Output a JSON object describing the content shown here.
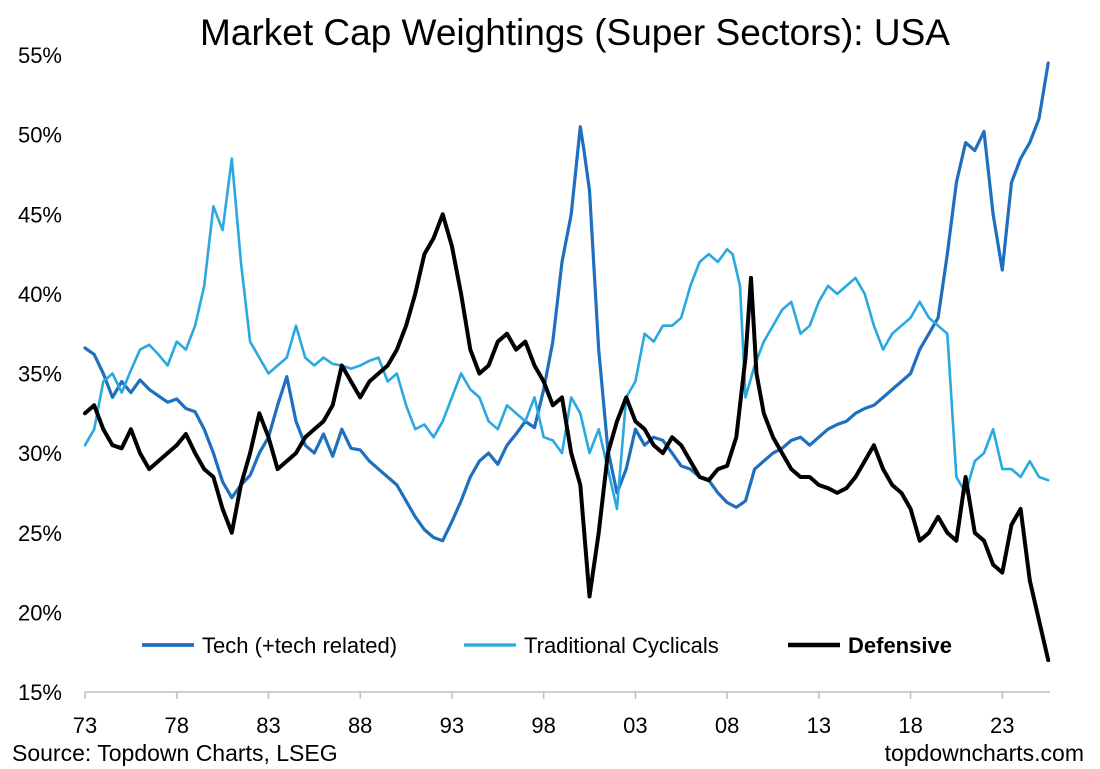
{
  "chart_data": {
    "type": "line",
    "title": "Market Cap Weightings (Super Sectors): USA",
    "xlabel": "",
    "ylabel": "",
    "x_ticks": [
      "73",
      "78",
      "83",
      "88",
      "93",
      "98",
      "03",
      "08",
      "13",
      "18",
      "23"
    ],
    "x_range": [
      1973,
      2025.6
    ],
    "y_ticks": [
      "15%",
      "20%",
      "25%",
      "30%",
      "35%",
      "40%",
      "45%",
      "50%",
      "55%"
    ],
    "y_range": [
      15,
      55
    ],
    "grid": false,
    "legend_position": "bottom",
    "series": [
      {
        "name": "Tech (+tech related)",
        "color": "#1f6fbf",
        "style": "medium",
        "x": [
          1973.0,
          1973.5,
          1974.0,
          1974.5,
          1975.0,
          1975.5,
          1976.0,
          1976.5,
          1977.0,
          1977.5,
          1978.0,
          1978.5,
          1979.0,
          1979.5,
          1980.0,
          1980.5,
          1981.0,
          1981.5,
          1982.0,
          1982.5,
          1983.0,
          1983.5,
          1984.0,
          1984.5,
          1985.0,
          1985.5,
          1986.0,
          1986.5,
          1987.0,
          1987.5,
          1988.0,
          1988.5,
          1989.0,
          1989.5,
          1990.0,
          1990.5,
          1991.0,
          1991.5,
          1992.0,
          1992.5,
          1993.0,
          1993.5,
          1994.0,
          1994.5,
          1995.0,
          1995.5,
          1996.0,
          1996.5,
          1997.0,
          1997.5,
          1998.0,
          1998.5,
          1999.0,
          1999.5,
          2000.0,
          2000.2,
          2000.5,
          2001.0,
          2001.5,
          2002.0,
          2002.5,
          2003.0,
          2003.5,
          2004.0,
          2004.5,
          2005.0,
          2005.5,
          2006.0,
          2006.5,
          2007.0,
          2007.5,
          2008.0,
          2008.5,
          2009.0,
          2009.5,
          2010.0,
          2010.5,
          2011.0,
          2011.5,
          2012.0,
          2012.5,
          2013.0,
          2013.5,
          2014.0,
          2014.5,
          2015.0,
          2015.5,
          2016.0,
          2016.5,
          2017.0,
          2017.5,
          2018.0,
          2018.5,
          2019.0,
          2019.5,
          2020.0,
          2020.5,
          2021.0,
          2021.5,
          2022.0,
          2022.5,
          2023.0,
          2023.5,
          2024.0,
          2024.5,
          2025.0,
          2025.5
        ],
        "values": [
          36.6,
          36.2,
          35.0,
          33.5,
          34.5,
          33.8,
          34.6,
          34.0,
          33.6,
          33.2,
          33.4,
          32.8,
          32.6,
          31.5,
          30.0,
          28.2,
          27.2,
          28.0,
          28.6,
          30.0,
          31.0,
          33.0,
          34.8,
          32.0,
          30.5,
          30.0,
          31.2,
          29.8,
          31.5,
          30.3,
          30.2,
          29.5,
          29.0,
          28.5,
          28.0,
          27.0,
          26.0,
          25.2,
          24.7,
          24.5,
          25.7,
          27.0,
          28.5,
          29.5,
          30.0,
          29.3,
          30.5,
          31.2,
          32.0,
          31.6,
          34.0,
          37.0,
          42.0,
          45.0,
          50.5,
          49.0,
          46.5,
          36.5,
          30.2,
          27.5,
          29.0,
          31.5,
          30.5,
          31.0,
          30.8,
          30.0,
          29.2,
          29.0,
          28.5,
          28.3,
          27.5,
          26.9,
          26.6,
          27.0,
          29.0,
          29.5,
          30.0,
          30.3,
          30.8,
          31.0,
          30.5,
          31.0,
          31.5,
          31.8,
          32.0,
          32.5,
          32.8,
          33.0,
          33.5,
          34.0,
          34.5,
          35.0,
          36.5,
          37.5,
          38.5,
          42.5,
          47.0,
          49.5,
          49.0,
          50.2,
          45.0,
          41.5,
          47.0,
          48.5,
          49.5,
          51.0,
          54.5
        ]
      },
      {
        "name": "Traditional Cyclicals",
        "color": "#2aa8e0",
        "style": "thin",
        "x": [
          1973.0,
          1973.5,
          1974.0,
          1974.5,
          1975.0,
          1975.5,
          1976.0,
          1976.5,
          1977.0,
          1977.5,
          1978.0,
          1978.5,
          1979.0,
          1979.5,
          1980.0,
          1980.5,
          1981.0,
          1981.5,
          1982.0,
          1982.5,
          1983.0,
          1983.5,
          1984.0,
          1984.5,
          1985.0,
          1985.5,
          1986.0,
          1986.5,
          1987.0,
          1987.5,
          1988.0,
          1988.5,
          1989.0,
          1989.5,
          1990.0,
          1990.5,
          1991.0,
          1991.5,
          1992.0,
          1992.5,
          1993.0,
          1993.5,
          1994.0,
          1994.5,
          1995.0,
          1995.5,
          1996.0,
          1996.5,
          1997.0,
          1997.5,
          1998.0,
          1998.5,
          1999.0,
          1999.5,
          2000.0,
          2000.5,
          2001.0,
          2001.5,
          2002.0,
          2002.5,
          2003.0,
          2003.5,
          2004.0,
          2004.5,
          2005.0,
          2005.5,
          2006.0,
          2006.5,
          2007.0,
          2007.5,
          2008.0,
          2008.3,
          2008.7,
          2009.0,
          2009.5,
          2010.0,
          2010.5,
          2011.0,
          2011.5,
          2012.0,
          2012.5,
          2013.0,
          2013.5,
          2014.0,
          2014.5,
          2015.0,
          2015.5,
          2016.0,
          2016.5,
          2017.0,
          2017.5,
          2018.0,
          2018.5,
          2019.0,
          2019.5,
          2020.0,
          2020.5,
          2021.0,
          2021.5,
          2022.0,
          2022.5,
          2023.0,
          2023.5,
          2024.0,
          2024.5,
          2025.0,
          2025.5
        ],
        "values": [
          30.5,
          31.5,
          34.5,
          35.0,
          33.8,
          35.2,
          36.5,
          36.8,
          36.2,
          35.5,
          37.0,
          36.5,
          38.0,
          40.5,
          45.5,
          44.0,
          48.5,
          42.0,
          37.0,
          36.0,
          35.0,
          35.5,
          36.0,
          38.0,
          36.0,
          35.5,
          36.0,
          35.6,
          35.5,
          35.3,
          35.5,
          35.8,
          36.0,
          34.5,
          35.0,
          33.0,
          31.5,
          31.8,
          31.0,
          32.0,
          33.5,
          35.0,
          34.0,
          33.5,
          32.0,
          31.5,
          33.0,
          32.5,
          32.0,
          33.5,
          31.0,
          30.8,
          30.0,
          33.5,
          32.5,
          30.0,
          31.5,
          29.0,
          26.5,
          33.5,
          34.5,
          37.5,
          37.0,
          38.0,
          38.0,
          38.5,
          40.5,
          42.0,
          42.5,
          42.0,
          42.8,
          42.5,
          40.5,
          33.5,
          35.5,
          37.0,
          38.0,
          39.0,
          39.5,
          37.5,
          38.0,
          39.5,
          40.5,
          40.0,
          40.5,
          41.0,
          40.0,
          38.0,
          36.5,
          37.5,
          38.0,
          38.5,
          39.5,
          38.5,
          38.0,
          37.5,
          28.5,
          27.5,
          29.5,
          30.0,
          31.5,
          29.0,
          29.0,
          28.5,
          29.5,
          28.5,
          28.3
        ]
      },
      {
        "name": "Defensive",
        "color": "#000000",
        "style": "bold",
        "x": [
          1973.0,
          1973.5,
          1974.0,
          1974.5,
          1975.0,
          1975.5,
          1976.0,
          1976.5,
          1977.0,
          1977.5,
          1978.0,
          1978.5,
          1979.0,
          1979.5,
          1980.0,
          1980.5,
          1981.0,
          1981.5,
          1982.0,
          1982.5,
          1983.0,
          1983.5,
          1984.0,
          1984.5,
          1985.0,
          1985.5,
          1986.0,
          1986.5,
          1987.0,
          1987.5,
          1988.0,
          1988.5,
          1989.0,
          1989.5,
          1990.0,
          1990.5,
          1991.0,
          1991.5,
          1992.0,
          1992.5,
          1993.0,
          1993.5,
          1994.0,
          1994.5,
          1995.0,
          1995.5,
          1996.0,
          1996.5,
          1997.0,
          1997.5,
          1998.0,
          1998.5,
          1999.0,
          1999.5,
          2000.0,
          2000.5,
          2001.0,
          2001.5,
          2002.0,
          2002.5,
          2003.0,
          2003.5,
          2004.0,
          2004.5,
          2005.0,
          2005.5,
          2006.0,
          2006.5,
          2007.0,
          2007.5,
          2008.0,
          2008.5,
          2009.0,
          2009.3,
          2009.6,
          2010.0,
          2010.5,
          2011.0,
          2011.5,
          2012.0,
          2012.5,
          2013.0,
          2013.5,
          2014.0,
          2014.5,
          2015.0,
          2015.5,
          2016.0,
          2016.5,
          2017.0,
          2017.5,
          2018.0,
          2018.5,
          2019.0,
          2019.5,
          2020.0,
          2020.5,
          2021.0,
          2021.5,
          2022.0,
          2022.5,
          2023.0,
          2023.5,
          2024.0,
          2024.5,
          2025.0,
          2025.5
        ],
        "values": [
          32.5,
          33.0,
          31.5,
          30.5,
          30.3,
          31.5,
          30.0,
          29.0,
          29.5,
          30.0,
          30.5,
          31.2,
          30.0,
          29.0,
          28.5,
          26.5,
          25.0,
          28.0,
          30.0,
          32.5,
          31.0,
          29.0,
          29.5,
          30.0,
          31.0,
          31.5,
          32.0,
          33.0,
          35.5,
          34.5,
          33.5,
          34.5,
          35.0,
          35.5,
          36.5,
          38.0,
          40.0,
          42.5,
          43.5,
          45.0,
          43.0,
          40.0,
          36.5,
          35.0,
          35.5,
          37.0,
          37.5,
          36.5,
          37.0,
          35.5,
          34.5,
          33.0,
          33.5,
          30.0,
          28.0,
          21.0,
          25.0,
          30.0,
          32.0,
          33.5,
          32.0,
          31.5,
          30.5,
          30.0,
          31.0,
          30.5,
          29.5,
          28.5,
          28.3,
          29.0,
          29.2,
          31.0,
          36.0,
          41.0,
          35.0,
          32.5,
          31.0,
          30.0,
          29.0,
          28.5,
          28.5,
          28.0,
          27.8,
          27.5,
          27.8,
          28.5,
          29.5,
          30.5,
          29.0,
          28.0,
          27.5,
          26.5,
          24.5,
          25.0,
          26.0,
          25.0,
          24.5,
          28.5,
          25.0,
          24.5,
          23.0,
          22.5,
          25.5,
          26.5,
          22.0,
          19.5,
          17.0
        ]
      }
    ]
  },
  "source_note": "Source: Topdown Charts, LSEG",
  "brand_note": "topdowncharts.com"
}
